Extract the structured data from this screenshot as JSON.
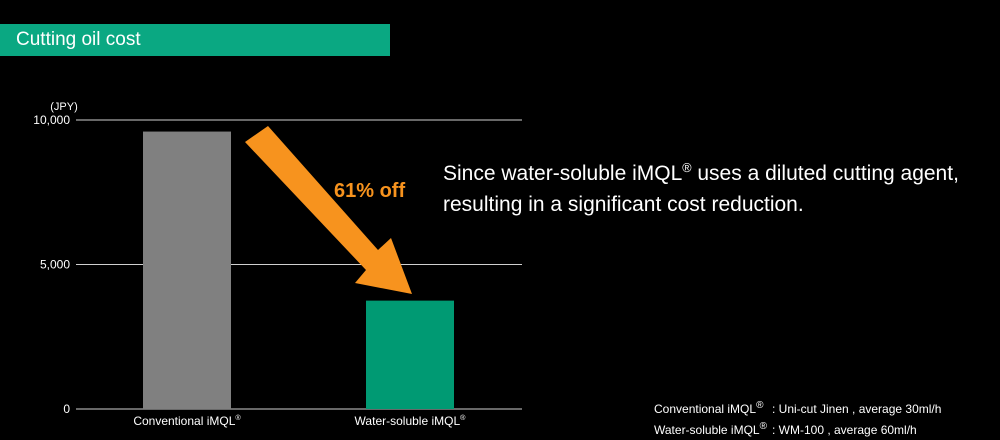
{
  "header": {
    "title": "Cutting oil cost"
  },
  "caption": {
    "line1_pre": "Since water-soluble iMQL",
    "line1_sup": "®",
    "line1_post": " uses a diluted cutting agent,",
    "line2": "resulting in a significant cost reduction."
  },
  "notes": [
    {
      "name": "Conventional iMQL",
      "sup": "®",
      "desc": ": Uni-cut Jinen , average 30ml/h"
    },
    {
      "name": "Water-soluble iMQL",
      "sup": "®",
      "desc": ": WM-100 , average 60ml/h"
    }
  ],
  "colors": {
    "conventional": "#808080",
    "water_soluble": "#009a73",
    "arrow": "#f7931e",
    "header": "#0aa882"
  },
  "chart_data": {
    "type": "bar",
    "unit_label": "(JPY)",
    "categories": [
      "Conventional iMQL",
      "Water-soluble iMQL"
    ],
    "category_sup": "®",
    "values": [
      9600,
      3750
    ],
    "yticks": [
      0,
      5000,
      10000
    ],
    "ytick_labels": [
      "0",
      "5,000",
      "10,000"
    ],
    "ylim": [
      0,
      10000
    ],
    "grid": true,
    "annotation": "61% off"
  }
}
